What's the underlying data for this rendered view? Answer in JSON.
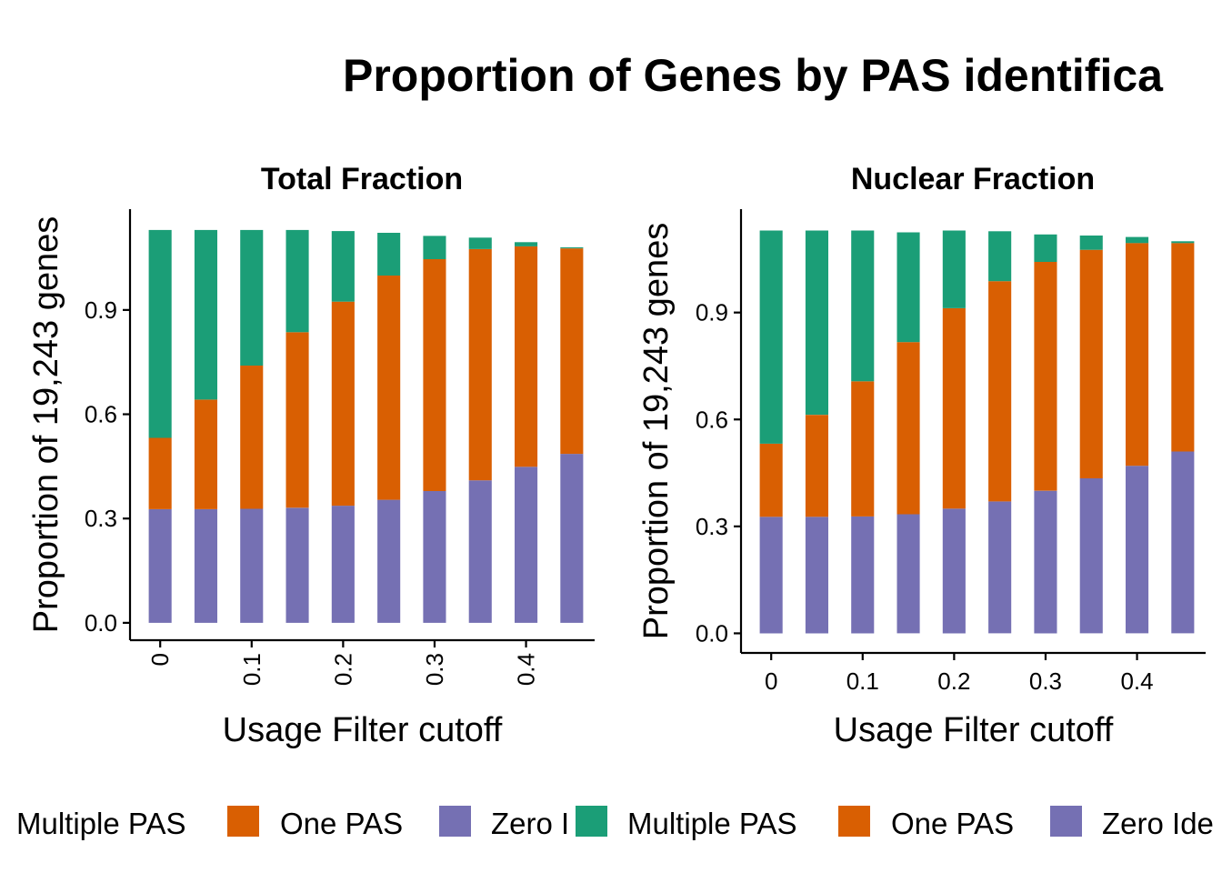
{
  "title": "Proportion of Genes by PAS identifica",
  "colors": {
    "Zero Identified": "#7570B3",
    "One PAS": "#D95F02",
    "Multiple PAS": "#1B9E77"
  },
  "chart_data": [
    {
      "type": "bar",
      "stacked": true,
      "title": "Total Fraction",
      "xlabel": "Usage Filter cutoff",
      "ylabel": "Proportion of 19,243 genes",
      "x": [
        0,
        0.05,
        0.1,
        0.15,
        0.2,
        0.25,
        0.3,
        0.35,
        0.4,
        0.45
      ],
      "x_ticks": [
        "0",
        "0.1",
        "0.2",
        "0.3",
        "0.4"
      ],
      "x_tick_values": [
        0,
        0.1,
        0.2,
        0.3,
        0.4
      ],
      "x_tick_rotation": -90,
      "xlim": [
        -0.033,
        0.475
      ],
      "y_ticks": [
        "0.0",
        "0.3",
        "0.6",
        "0.9"
      ],
      "y_tick_values": [
        0,
        0.3,
        0.6,
        0.9
      ],
      "ylim": [
        -0.05,
        1.19
      ],
      "grid": false,
      "series": [
        {
          "name": "Zero Identified",
          "values": [
            0.327,
            0.327,
            0.328,
            0.331,
            0.337,
            0.354,
            0.379,
            0.41,
            0.449,
            0.486
          ]
        },
        {
          "name": "One PAS",
          "values": [
            0.205,
            0.315,
            0.412,
            0.505,
            0.587,
            0.645,
            0.667,
            0.665,
            0.634,
            0.591
          ]
        },
        {
          "name": "Multiple PAS",
          "values": [
            0.598,
            0.488,
            0.39,
            0.294,
            0.203,
            0.123,
            0.067,
            0.033,
            0.012,
            0.003
          ]
        }
      ],
      "legend": {
        "position": "bottom",
        "labels": [
          "Multiple PAS",
          "One PAS",
          "Zero Identified"
        ],
        "visible_text": [
          "Multiple PAS",
          "One PAS",
          "Zero I"
        ]
      }
    },
    {
      "type": "bar",
      "stacked": true,
      "title": "Nuclear Fraction",
      "xlabel": "Usage Filter cutoff",
      "ylabel": "Proportion of 19,243 genes",
      "x": [
        0,
        0.05,
        0.1,
        0.15,
        0.2,
        0.25,
        0.3,
        0.35,
        0.4,
        0.45
      ],
      "x_ticks": [
        "0",
        "0.1",
        "0.2",
        "0.3",
        "0.4"
      ],
      "x_tick_values": [
        0,
        0.1,
        0.2,
        0.3,
        0.4
      ],
      "x_tick_rotation": 0,
      "xlim": [
        -0.033,
        0.475
      ],
      "y_ticks": [
        "0.0",
        "0.3",
        "0.6",
        "0.9"
      ],
      "y_tick_values": [
        0,
        0.3,
        0.6,
        0.9
      ],
      "ylim": [
        -0.055,
        1.19
      ],
      "grid": false,
      "series": [
        {
          "name": "Zero Identified",
          "values": [
            0.327,
            0.327,
            0.328,
            0.334,
            0.35,
            0.37,
            0.4,
            0.435,
            0.47,
            0.51
          ]
        },
        {
          "name": "One PAS",
          "values": [
            0.205,
            0.286,
            0.379,
            0.483,
            0.562,
            0.618,
            0.642,
            0.641,
            0.625,
            0.585
          ]
        },
        {
          "name": "Multiple PAS",
          "values": [
            0.598,
            0.517,
            0.423,
            0.308,
            0.218,
            0.14,
            0.077,
            0.04,
            0.017,
            0.005
          ]
        }
      ],
      "legend": {
        "position": "bottom",
        "labels": [
          "Multiple PAS",
          "One PAS",
          "Zero Identified"
        ],
        "visible_text": [
          "Multiple PAS",
          "One PAS",
          "Zero Ide"
        ]
      }
    }
  ]
}
